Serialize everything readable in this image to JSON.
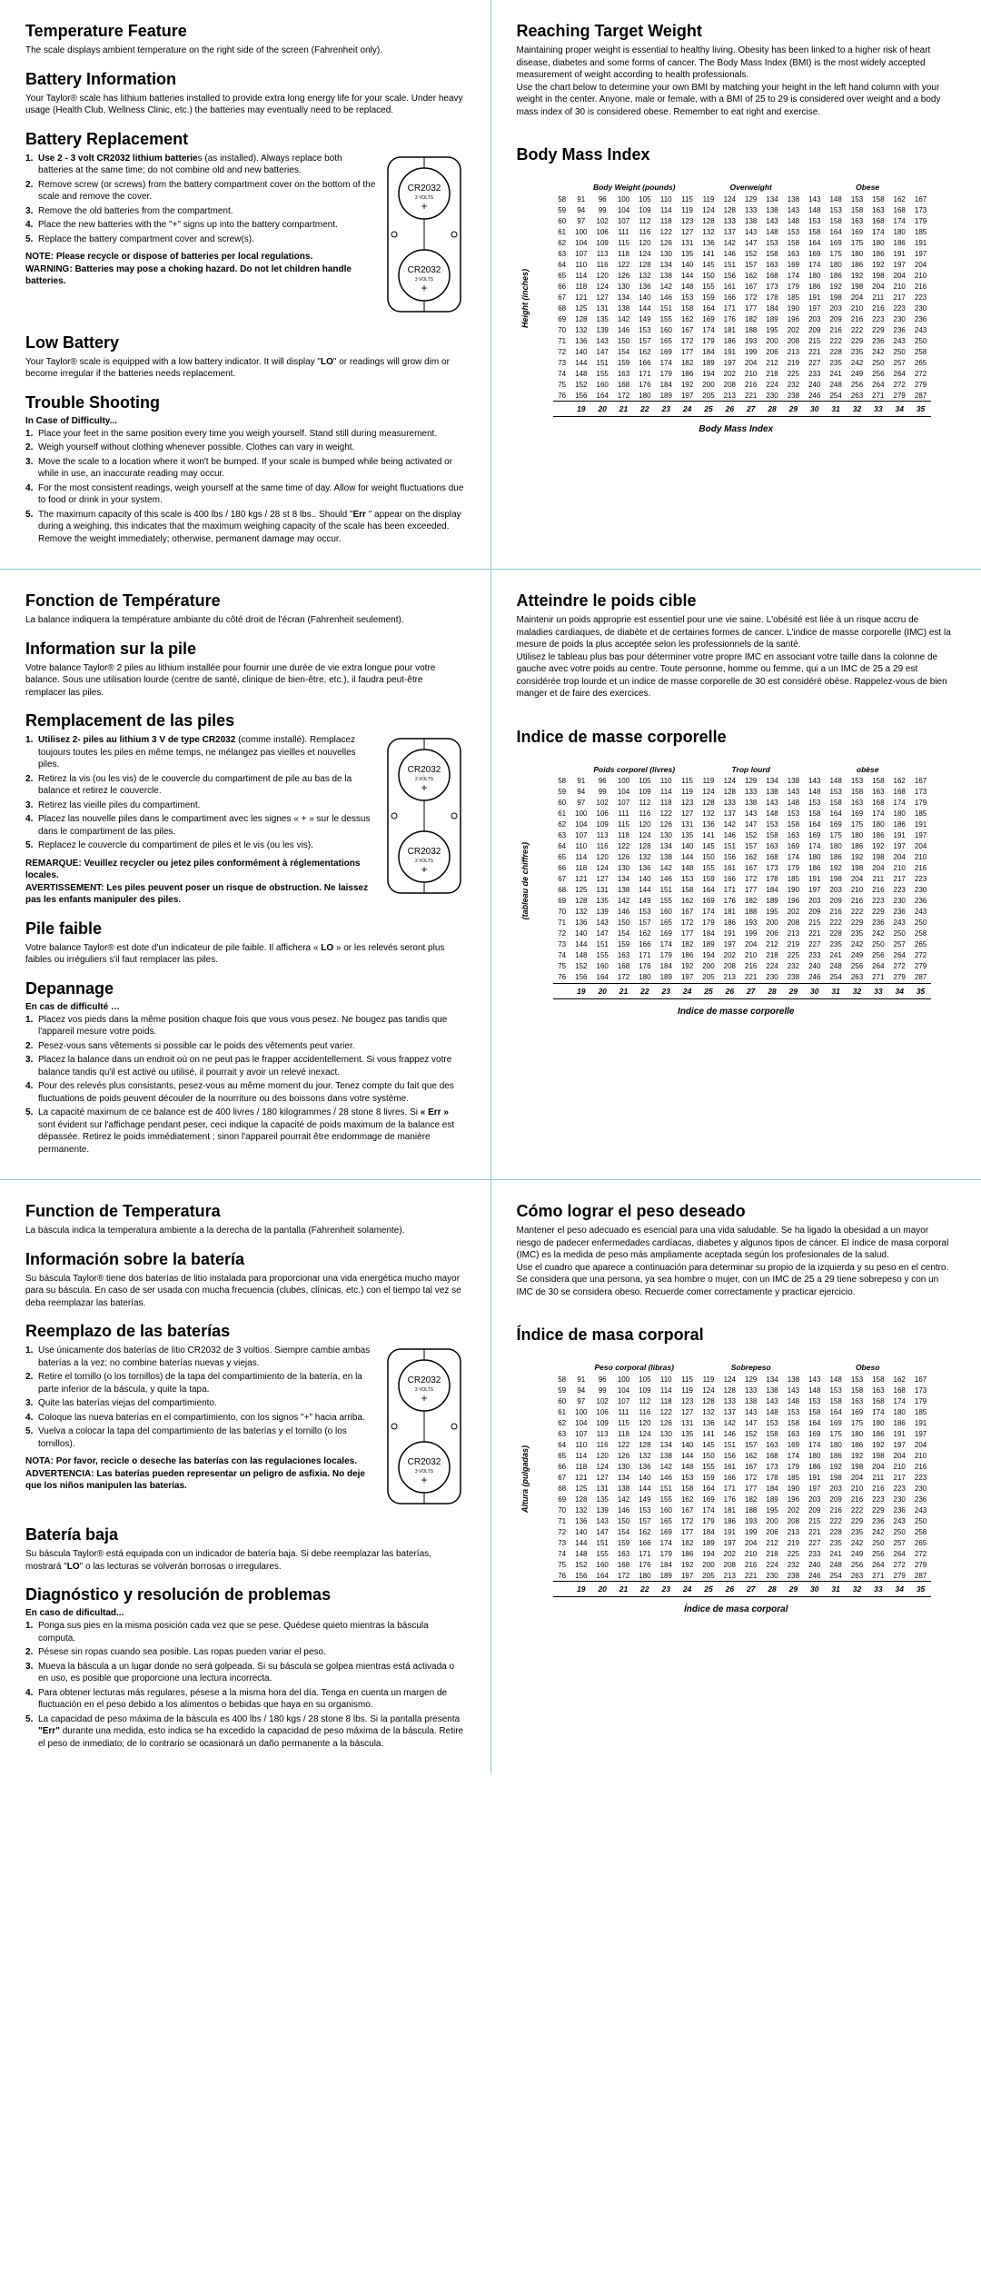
{
  "bmi": {
    "heights": [
      58,
      59,
      60,
      61,
      62,
      63,
      64,
      65,
      66,
      67,
      68,
      69,
      70,
      71,
      72,
      73,
      74,
      75,
      76
    ],
    "weights": [
      [
        91,
        96,
        100,
        105,
        110,
        115,
        119,
        124,
        129,
        134,
        138,
        143,
        148,
        153,
        158,
        162,
        167
      ],
      [
        94,
        99,
        104,
        109,
        114,
        119,
        124,
        128,
        133,
        138,
        143,
        148,
        153,
        158,
        163,
        168,
        173
      ],
      [
        97,
        102,
        107,
        112,
        118,
        123,
        128,
        133,
        138,
        143,
        148,
        153,
        158,
        163,
        168,
        174,
        179
      ],
      [
        100,
        106,
        111,
        116,
        122,
        127,
        132,
        137,
        143,
        148,
        153,
        158,
        164,
        169,
        174,
        180,
        185
      ],
      [
        104,
        109,
        115,
        120,
        126,
        131,
        136,
        142,
        147,
        153,
        158,
        164,
        169,
        175,
        180,
        186,
        191
      ],
      [
        107,
        113,
        118,
        124,
        130,
        135,
        141,
        146,
        152,
        158,
        163,
        169,
        175,
        180,
        186,
        191,
        197
      ],
      [
        110,
        116,
        122,
        128,
        134,
        140,
        145,
        151,
        157,
        163,
        169,
        174,
        180,
        186,
        192,
        197,
        204
      ],
      [
        114,
        120,
        126,
        132,
        138,
        144,
        150,
        156,
        162,
        168,
        174,
        180,
        186,
        192,
        198,
        204,
        210
      ],
      [
        118,
        124,
        130,
        136,
        142,
        148,
        155,
        161,
        167,
        173,
        179,
        186,
        192,
        198,
        204,
        210,
        216
      ],
      [
        121,
        127,
        134,
        140,
        146,
        153,
        159,
        166,
        172,
        178,
        185,
        191,
        198,
        204,
        211,
        217,
        223
      ],
      [
        125,
        131,
        138,
        144,
        151,
        158,
        164,
        171,
        177,
        184,
        190,
        197,
        203,
        210,
        216,
        223,
        230
      ],
      [
        128,
        135,
        142,
        149,
        155,
        162,
        169,
        176,
        182,
        189,
        196,
        203,
        209,
        216,
        223,
        230,
        236
      ],
      [
        132,
        139,
        146,
        153,
        160,
        167,
        174,
        181,
        188,
        195,
        202,
        209,
        216,
        222,
        229,
        236,
        243
      ],
      [
        136,
        143,
        150,
        157,
        165,
        172,
        179,
        186,
        193,
        200,
        208,
        215,
        222,
        229,
        236,
        243,
        250
      ],
      [
        140,
        147,
        154,
        162,
        169,
        177,
        184,
        191,
        199,
        206,
        213,
        221,
        228,
        235,
        242,
        250,
        258
      ],
      [
        144,
        151,
        159,
        166,
        174,
        182,
        189,
        197,
        204,
        212,
        219,
        227,
        235,
        242,
        250,
        257,
        265
      ],
      [
        148,
        155,
        163,
        171,
        179,
        186,
        194,
        202,
        210,
        218,
        225,
        233,
        241,
        249,
        256,
        264,
        272
      ],
      [
        152,
        160,
        168,
        176,
        184,
        192,
        200,
        208,
        216,
        224,
        232,
        240,
        248,
        256,
        264,
        272,
        279
      ],
      [
        156,
        164,
        172,
        180,
        189,
        197,
        205,
        213,
        221,
        230,
        238,
        246,
        254,
        263,
        271,
        279,
        287
      ]
    ],
    "bmirow": [
      19,
      20,
      21,
      22,
      23,
      24,
      25,
      26,
      27,
      28,
      29,
      30,
      31,
      32,
      33,
      34,
      35
    ]
  },
  "en": {
    "tempTitle": "Temperature Feature",
    "tempBody": "The scale displays ambient temperature on the right side of the screen (Fahrenheit only).",
    "battInfoTitle": "Battery Information",
    "battInfoBody": "Your Taylor® scale has lithium batteries installed to provide extra long energy life for your scale. Under heavy usage (Health Club, Wellness Clinic, etc.) the batteries may eventually need to be replaced.",
    "replTitle": "Battery Replacement",
    "repl": [
      "<span class='b1'>Use 2 - 3 volt CR2032 lithium batterie</span>s (as installed). Always replace both batteries at the same time; do not combine old and new batteries.",
      "Remove screw (or screws) from the battery compartment cover on the bottom of the scale and remove the cover.",
      "Remove the old batteries from the compartment.",
      "Place the new batteries with the \"+\" signs up into the battery compartment.",
      "Replace the battery compartment cover and screw(s)."
    ],
    "note": "NOTE: Please recycle or dispose of batteries per local regulations.<br>WARNING: Batteries may pose a choking hazard. Do not let children handle batteries.",
    "lowTitle": "Low Battery",
    "lowBody": "Your Taylor® scale is equipped with a low battery indicator. It will display \"<b>LO</b>\" or readings will grow dim or become irregular if the batteries needs replacement.",
    "trTitle": "Trouble Shooting",
    "trSub": "In Case of Difficulty...",
    "tr": [
      "Place your feet in the same position every time you weigh yourself. Stand still during measurement.",
      "Weigh yourself without clothing whenever possible. Clothes can vary in weight.",
      "Move the scale to a location where it won't be bumped. If your scale is bumped while being activated or while in use, an inaccurate reading may occur.",
      "For the most consistent readings, weigh yourself at the same time of day. Allow for weight fluctuations due to food or drink in your system.",
      "The maximum capacity of this scale is 400 lbs / 180 kgs / 28 st 8 lbs.. Should \"<b>Err</b> \" appear on the display during a weighing, this indicates that the maximum weighing capacity of the scale has been exceeded. Remove the weight immediately; otherwise, permanent damage may occur."
    ],
    "reachTitle": "Reaching Target Weight",
    "reachBody": "Maintaining proper weight is essential to healthy living. Obesity has been linked to a higher risk of heart disease, diabetes and some forms of cancer. The Body Mass Index (BMI) is the most widely accepted measurement of weight according to health professionals.<br>Use the chart below to determine your own BMI by matching your height in the left hand column with your weight in the center. Anyone, male or female, with a BMI of 25 to 29 is considered over weight and a body mass index of 30 is considered obese. Remember to eat right and exercise.",
    "bmiTitle": "Body Mass Index",
    "colA": "Body Weight (pounds)",
    "colB": "Overweight",
    "colC": "Obese",
    "vaxis": "Height (inches)",
    "bmiCap": "Body Mass Index"
  },
  "fr": {
    "tempTitle": "Fonction de Température",
    "tempBody": "La balance indiquera la température ambiante du côté droit de l'écran (Fahrenheit seulement).",
    "battInfoTitle": "Information sur la pile",
    "battInfoBody": "Votre balance Taylor® 2 piles au lithium installée pour fournir une durée de vie extra longue pour votre balance. Sous une utilisation lourde (centre de santé, clinique de bien-être, etc.), il faudra peut-être remplacer las piles.",
    "replTitle": "Remplacement de las piles",
    "repl": [
      "<span class='b1'>Utilisez 2- piles au lithium 3 V de type CR2032</span> (comme installé). Remplacez toujours toutes les piles en même temps, ne mélangez pas vieilles et nouvelles piles.",
      "Retirez la vis (ou les vis) de le couvercle du compartiment de pile au bas de la balance et retirez le couvercle.",
      "Retirez las vieille piles du compartiment.",
      "Placez las nouvelle piles dans le compartiment avec les signes « + » sur le dessus dans le  compartiment de las piles.",
      "Replacez le couvercle du compartiment de piles et le vis (ou les vis)."
    ],
    "note": "REMARQUE: Veuillez recycler ou jetez piles conformément à réglementations locales.<br>AVERTISSEMENT: Les piles peuvent poser un risque de obstruction. Ne laissez pas les enfants manipuler des piles.",
    "lowTitle": "Pile faible",
    "lowBody": "Votre balance Taylor® est dote d'un indicateur de pile faible. Il affichera « <b>LO</b> » or les relevés seront plus faibles ou irréguliers s'il faut remplacer las piles.",
    "trTitle": "Depannage",
    "trSub": "En cas de difficulté …",
    "tr": [
      "Placez vos pieds dans la même position chaque fois que vous vous pesez. Ne bougez pas tandis que l'appareil mesure votre poids.",
      "Pesez-vous sans vêtements si possible car le poids des vêtements peut varier.",
      "Placez la balance dans un endroit où on ne peut pas le frapper accidentellement. Si vous frappez votre balance tandis qu'il est activé ou utilisé, il pourrait y avoir un relevé inexact.",
      "Pour des relevés plus consistants, pesez-vous au même moment du jour. Tenez compte du fait que des fluctuations de poids peuvent découler de la nourriture ou des boissons dans votre système.",
      "La capacité maximum de ce balance est de 400 livres / 180 kilogrammes / 28 stone 8 livres. Si <b>« Err »</b> sont évident sur l'affichage pendant peser, ceci indique la capacité de poids maximum de la balance est dépassée. Retirez le poids immédiatement ; sinon l'appareil pourrait être endommage de manière permanente."
    ],
    "reachTitle": "Atteindre le poids cible",
    "reachBody": "Maintenir un poids approprie est essentiel pour une vie saine. L'obésité est liée à un risque accru de maladies cardiaques, de diabète et de certaines formes de cancer. L'indice de masse corporelle (IMC) est la mesure de poids la plus acceptée selon les professionnels de la santé.<br>Utilisez le tableau plus bas pour déterminer votre propre IMC en associant votre taille dans la colonne de gauche avec votre poids au centre. Toute personne, homme ou femme, qui a un IMC de 25 a 29 est considérée trop lourde et un indice de masse corporelle de 30 est considéré obèse. Rappelez-vous de bien manger et de faire des exercices.",
    "bmiTitle": "Indice de masse corporelle",
    "colA": "Poids corporel (livres)",
    "colB": "Trop lourd",
    "colC": "obèse",
    "vaxis": "(tableau de chiffres)",
    "bmiCap": "Indice de masse corporelle"
  },
  "es": {
    "tempTitle": "Function de Temperatura",
    "tempBody": "La báscula indica la temperatura ambiente a la derecha de la pantalla (Fahrenheit solamente).",
    "battInfoTitle": "Información sobre la batería",
    "battInfoBody": "Su báscula Taylor® tiene dos baterías de litio instalada para proporcionar una vida energética mucho mayor para su báscula. En caso de ser usada con mucha frecuencia (clubes, clínicas, etc.) con el tiempo tal vez se deba reemplazar las baterías.",
    "replTitle": "Reemplazo de las baterías",
    "repl": [
      "Use únicamente dos baterías de litio CR2032 de 3 voltios. Siempre cambie ambas baterías a la vez; no combine baterías nuevas y viejas.",
      "Retire el tornillo (o los tornillos) de la tapa del compartimiento de la batería, en la parte inferior de la báscula, y quite la tapa.",
      "Quite las baterías viejas del compartimiento.",
      "Coloque las nueva baterías en el compartimiento, con los signos \"+\" hacia arriba.",
      "Vuelva a colocar la tapa del compartimiento de las baterías y el tornillo (o los tornillos)."
    ],
    "note": "NOTA: Por favor, recicle o deseche las baterías con las regulaciones locales.<br>ADVERTENCIA: Las baterías pueden representar un peligro de asfixia. No deje que los niños manipulen las baterías.",
    "lowTitle": "Batería baja",
    "lowBody": "Su báscula Taylor® está equipada con un indicador de batería baja. Si debe reemplazar las baterías, mostrará \"<b>LO</b>\" o las lecturas se volverán borrosas o irregulares.",
    "trTitle": "Diagnóstico y resolución de problemas",
    "trSub": "En caso de dificultad...",
    "tr": [
      "Ponga sus pies en la misma posición cada vez que se pese. Quédese quieto mientras la báscula computa.",
      "Pésese sin ropas cuando sea posible. Las ropas pueden variar el peso.",
      "Mueva la báscula a un lugar donde no será golpeada. Si su báscula se golpea mientras está activada o en uso, es posible que proporcione una lectura incorrecta.",
      "Para obtener lecturas más regulares, pésese a la misma hora del día. Tenga en cuenta un margen de fluctuación en el peso debido a los alimentos o bebidas que haya en su organismo.",
      "La capacidad de peso máxima de la báscula es 400 lbs / 180 kgs / 28 stone 8 lbs. Si la pantalla presenta <b>\"Err\"</b> durante una medida, esto indica se ha excedido la capacidad de peso máxima de la báscula. Retire el peso de inmediato; de lo contrario se ocasionará un daño permanente a la báscula."
    ],
    "reachTitle": "Cómo lograr el peso deseado",
    "reachBody": "Mantener el peso adecuado es esencial para una vida saludable. Se ha ligado la obesidad a un mayor riesgo de padecer enfermedades cardíacas, diabetes y algunos tipos de cáncer. El índice de masa corporal (IMC) es la medida de peso más ampliamente aceptada según los profesionales de la salud.<br>Use el cuadro que aparece a continuación para determinar su propio de la izquierda y su peso en el centro. Se considera que una persona, ya sea hombre o mujer, con un IMC de 25 a 29 tiene sobrepeso y con un IMC de 30 se considera obeso. Recuerde comer correctamente y practicar ejercicio.",
    "bmiTitle": "Índice de masa corporal",
    "colA": "Peso corporal (libras)",
    "colB": "Sobrepeso",
    "colC": "Obeso",
    "vaxis": "Altura (pulgadas)",
    "bmiCap": "Índice de masa corporal"
  },
  "battLabel": "CR2032",
  "battVolts": "3 VOLTS"
}
